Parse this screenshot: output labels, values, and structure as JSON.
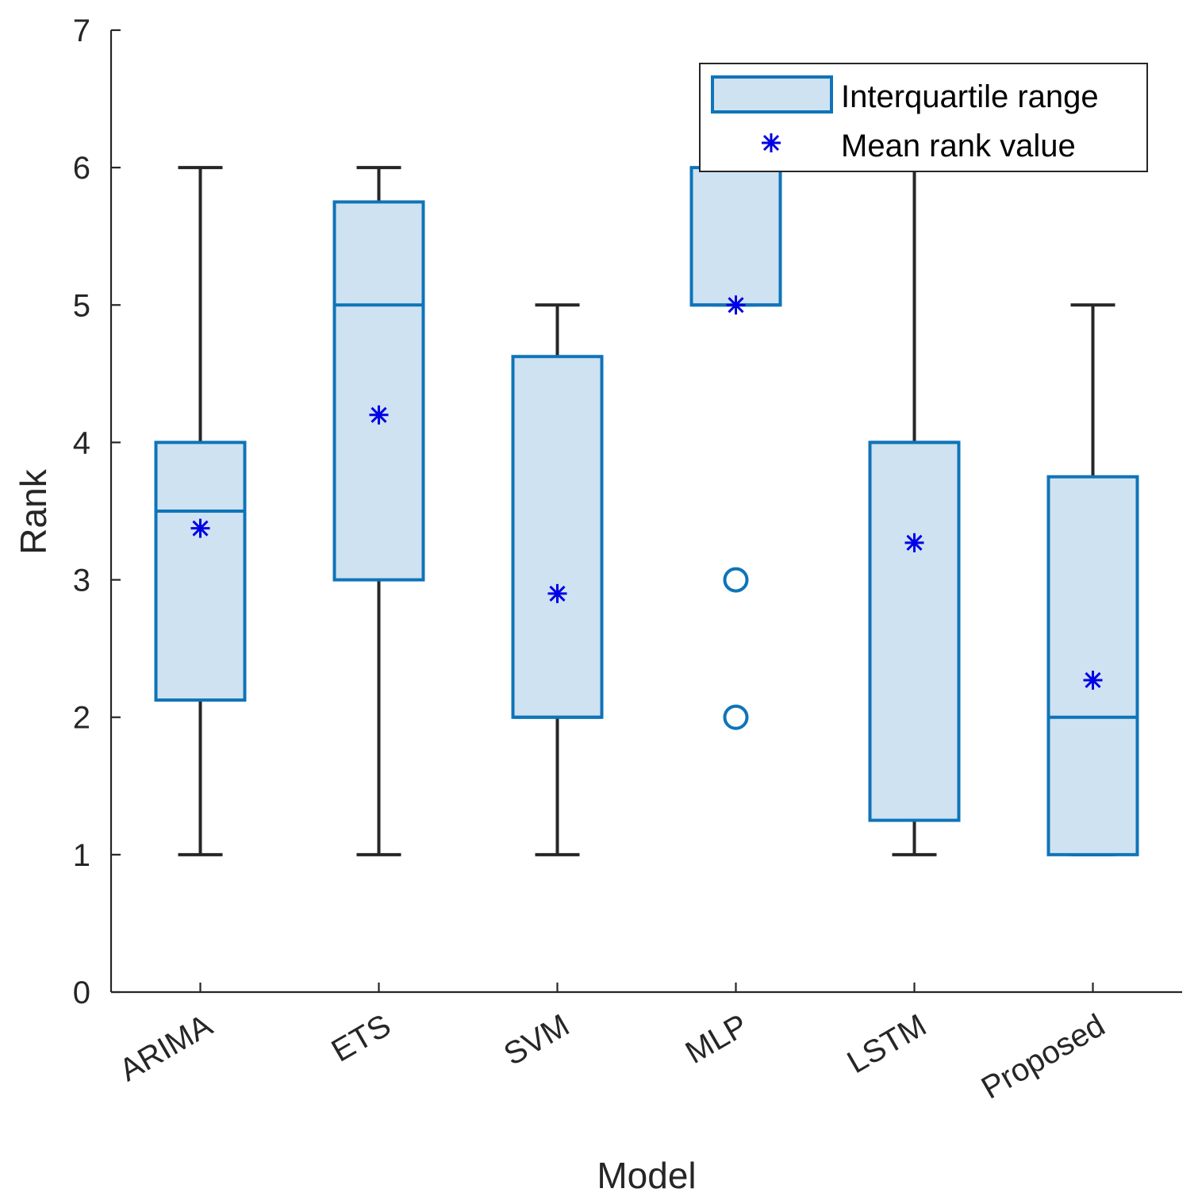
{
  "chart_data": {
    "type": "box",
    "xlabel": "Model",
    "ylabel": "Rank",
    "ylim": [
      0,
      7
    ],
    "yticks": [
      "0",
      "1",
      "2",
      "3",
      "4",
      "5",
      "6",
      "7"
    ],
    "categories": [
      "ARIMA",
      "ETS",
      "SVM",
      "MLP",
      "LSTM",
      "Proposed"
    ],
    "series": [
      {
        "name": "ARIMA",
        "whisker_low": 1,
        "q1": 2.125,
        "median": 3.5,
        "q3": 4,
        "whisker_high": 6,
        "mean": 3.375,
        "outliers": []
      },
      {
        "name": "ETS",
        "whisker_low": 1,
        "q1": 3,
        "median": 5,
        "q3": 5.75,
        "whisker_high": 6,
        "mean": 4.2,
        "outliers": []
      },
      {
        "name": "SVM",
        "whisker_low": 1,
        "q1": 2,
        "median": 2,
        "q3": 4.625,
        "whisker_high": 5,
        "mean": 2.9,
        "outliers": []
      },
      {
        "name": "MLP",
        "whisker_low": 5,
        "q1": 5,
        "median": 5,
        "q3": 6,
        "whisker_high": 6,
        "mean": 5,
        "outliers": [
          3,
          2
        ]
      },
      {
        "name": "LSTM",
        "whisker_low": 1,
        "q1": 1.25,
        "median": 4,
        "q3": 4,
        "whisker_high": 6,
        "mean": 3.27,
        "outliers": []
      },
      {
        "name": "Proposed",
        "whisker_low": 1,
        "q1": 1,
        "median": 2,
        "q3": 3.75,
        "whisker_high": 5,
        "mean": 2.27,
        "outliers": []
      }
    ],
    "legend": {
      "position": "top-right",
      "entries": [
        "Interquartile range",
        "Mean rank value"
      ]
    },
    "colors": {
      "box_fill": "#cfe2f1",
      "box_edge": "#0f74b8",
      "whisker": "#262626",
      "mean_marker": "#0000e6"
    }
  }
}
